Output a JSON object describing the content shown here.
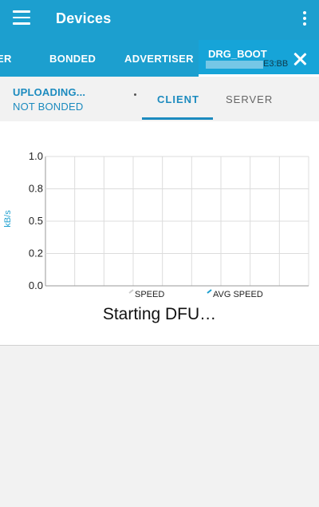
{
  "appbar": {
    "title": "Devices"
  },
  "tabs": [
    {
      "label": "ER"
    },
    {
      "label": "BONDED"
    },
    {
      "label": "ADVERTISER"
    }
  ],
  "active_tab": {
    "name": "DRG_BOOT",
    "address_suffix": "E3:BB"
  },
  "status": {
    "line1": "UPLOADING...",
    "line2": "NOT BONDED"
  },
  "subtabs": {
    "client": "CLIENT",
    "server": "SERVER"
  },
  "chart_data": {
    "type": "line",
    "ylabel": "kB/s",
    "yticks": [
      "1.0",
      "0.8",
      "0.5",
      "0.2",
      "0.0"
    ],
    "ylim": [
      0,
      1.0
    ],
    "grid": true,
    "series": [
      {
        "name": "SPEED",
        "color": "#cccccc",
        "values": []
      },
      {
        "name": "AVG SPEED",
        "color": "#1c9fcf",
        "values": []
      }
    ]
  },
  "dfu_status": "Starting DFU…",
  "icons": {
    "menu": "menu-icon",
    "more": "more-vert-icon",
    "close": "close-icon"
  }
}
